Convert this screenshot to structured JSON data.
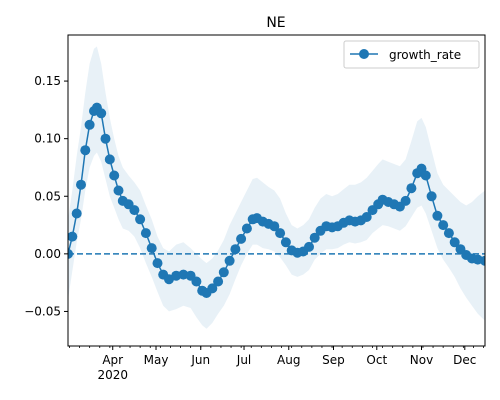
{
  "chart_data": {
    "type": "line",
    "title": "NE",
    "xlabel": "",
    "ylabel": "",
    "x_start": "2020-03-01",
    "x_end": "2020-12-15",
    "ylim": [
      -0.08,
      0.19
    ],
    "yticks": [
      -0.05,
      0.0,
      0.05,
      0.1,
      0.15
    ],
    "ytick_labels": [
      "−0.05",
      "0.00",
      "0.05",
      "0.10",
      "0.15"
    ],
    "xticks": [
      {
        "date": "2020-04-01",
        "label": "Apr",
        "sublabel": "2020"
      },
      {
        "date": "2020-05-01",
        "label": "May"
      },
      {
        "date": "2020-06-01",
        "label": "Jun"
      },
      {
        "date": "2020-07-01",
        "label": "Jul"
      },
      {
        "date": "2020-08-01",
        "label": "Aug"
      },
      {
        "date": "2020-09-01",
        "label": "Sep"
      },
      {
        "date": "2020-10-01",
        "label": "Oct"
      },
      {
        "date": "2020-11-01",
        "label": "Nov"
      },
      {
        "date": "2020-12-01",
        "label": "Dec"
      }
    ],
    "reference_line": {
      "y": 0.0,
      "style": "dashed",
      "color": "#1f77b4"
    },
    "legend": {
      "placement": "top-right",
      "entries": [
        "growth_rate"
      ]
    },
    "grid": false,
    "series": [
      {
        "name": "growth_rate",
        "color": "#1f77b4",
        "band_color": "#1f77b4",
        "points": [
          {
            "x": "2020-03-01",
            "y": 0.0,
            "lo": -0.04,
            "hi": 0.03
          },
          {
            "x": "2020-03-04",
            "y": 0.015,
            "lo": -0.015,
            "hi": 0.055
          },
          {
            "x": "2020-03-07",
            "y": 0.035,
            "lo": 0.01,
            "hi": 0.085
          },
          {
            "x": "2020-03-10",
            "y": 0.06,
            "lo": 0.03,
            "hi": 0.11
          },
          {
            "x": "2020-03-13",
            "y": 0.09,
            "lo": 0.055,
            "hi": 0.14
          },
          {
            "x": "2020-03-16",
            "y": 0.112,
            "lo": 0.075,
            "hi": 0.165
          },
          {
            "x": "2020-03-19",
            "y": 0.124,
            "lo": 0.085,
            "hi": 0.178
          },
          {
            "x": "2020-03-21",
            "y": 0.127,
            "lo": 0.088,
            "hi": 0.18
          },
          {
            "x": "2020-03-24",
            "y": 0.122,
            "lo": 0.08,
            "hi": 0.165
          },
          {
            "x": "2020-03-27",
            "y": 0.1,
            "lo": 0.065,
            "hi": 0.14
          },
          {
            "x": "2020-03-30",
            "y": 0.082,
            "lo": 0.05,
            "hi": 0.118
          },
          {
            "x": "2020-04-02",
            "y": 0.068,
            "lo": 0.04,
            "hi": 0.1
          },
          {
            "x": "2020-04-05",
            "y": 0.055,
            "lo": 0.03,
            "hi": 0.085
          },
          {
            "x": "2020-04-08",
            "y": 0.046,
            "lo": 0.022,
            "hi": 0.075
          },
          {
            "x": "2020-04-12",
            "y": 0.043,
            "lo": 0.02,
            "hi": 0.068
          },
          {
            "x": "2020-04-16",
            "y": 0.038,
            "lo": 0.015,
            "hi": 0.062
          },
          {
            "x": "2020-04-20",
            "y": 0.03,
            "lo": 0.005,
            "hi": 0.055
          },
          {
            "x": "2020-04-24",
            "y": 0.018,
            "lo": -0.008,
            "hi": 0.042
          },
          {
            "x": "2020-04-28",
            "y": 0.005,
            "lo": -0.02,
            "hi": 0.03
          },
          {
            "x": "2020-05-02",
            "y": -0.008,
            "lo": -0.033,
            "hi": 0.015
          },
          {
            "x": "2020-05-06",
            "y": -0.018,
            "lo": -0.045,
            "hi": 0.005
          },
          {
            "x": "2020-05-10",
            "y": -0.022,
            "lo": -0.05,
            "hi": 0.002
          },
          {
            "x": "2020-05-15",
            "y": -0.019,
            "lo": -0.048,
            "hi": 0.008
          },
          {
            "x": "2020-05-20",
            "y": -0.018,
            "lo": -0.045,
            "hi": 0.01
          },
          {
            "x": "2020-05-25",
            "y": -0.019,
            "lo": -0.047,
            "hi": 0.005
          },
          {
            "x": "2020-05-29",
            "y": -0.024,
            "lo": -0.055,
            "hi": 0.0
          },
          {
            "x": "2020-06-02",
            "y": -0.032,
            "lo": -0.062,
            "hi": -0.005
          },
          {
            "x": "2020-06-05",
            "y": -0.034,
            "lo": -0.065,
            "hi": -0.008
          },
          {
            "x": "2020-06-09",
            "y": -0.03,
            "lo": -0.06,
            "hi": -0.004
          },
          {
            "x": "2020-06-13",
            "y": -0.024,
            "lo": -0.052,
            "hi": 0.003
          },
          {
            "x": "2020-06-17",
            "y": -0.016,
            "lo": -0.045,
            "hi": 0.012
          },
          {
            "x": "2020-06-21",
            "y": -0.006,
            "lo": -0.035,
            "hi": 0.025
          },
          {
            "x": "2020-06-25",
            "y": 0.004,
            "lo": -0.022,
            "hi": 0.035
          },
          {
            "x": "2020-06-29",
            "y": 0.013,
            "lo": -0.01,
            "hi": 0.045
          },
          {
            "x": "2020-07-03",
            "y": 0.022,
            "lo": 0.0,
            "hi": 0.055
          },
          {
            "x": "2020-07-07",
            "y": 0.03,
            "lo": 0.008,
            "hi": 0.065
          },
          {
            "x": "2020-07-10",
            "y": 0.031,
            "lo": 0.008,
            "hi": 0.066
          },
          {
            "x": "2020-07-14",
            "y": 0.028,
            "lo": 0.005,
            "hi": 0.062
          },
          {
            "x": "2020-07-18",
            "y": 0.026,
            "lo": 0.004,
            "hi": 0.058
          },
          {
            "x": "2020-07-22",
            "y": 0.024,
            "lo": 0.002,
            "hi": 0.055
          },
          {
            "x": "2020-07-26",
            "y": 0.018,
            "lo": -0.003,
            "hi": 0.048
          },
          {
            "x": "2020-07-30",
            "y": 0.01,
            "lo": -0.01,
            "hi": 0.035
          },
          {
            "x": "2020-08-03",
            "y": 0.003,
            "lo": -0.018,
            "hi": 0.025
          },
          {
            "x": "2020-08-07",
            "y": 0.001,
            "lo": -0.02,
            "hi": 0.022
          },
          {
            "x": "2020-08-11",
            "y": 0.002,
            "lo": -0.018,
            "hi": 0.025
          },
          {
            "x": "2020-08-15",
            "y": 0.006,
            "lo": -0.014,
            "hi": 0.03
          },
          {
            "x": "2020-08-19",
            "y": 0.014,
            "lo": -0.005,
            "hi": 0.04
          },
          {
            "x": "2020-08-23",
            "y": 0.02,
            "lo": 0.0,
            "hi": 0.048
          },
          {
            "x": "2020-08-27",
            "y": 0.024,
            "lo": 0.004,
            "hi": 0.052
          },
          {
            "x": "2020-08-31",
            "y": 0.023,
            "lo": 0.004,
            "hi": 0.05
          },
          {
            "x": "2020-09-04",
            "y": 0.024,
            "lo": 0.005,
            "hi": 0.052
          },
          {
            "x": "2020-09-08",
            "y": 0.027,
            "lo": 0.008,
            "hi": 0.056
          },
          {
            "x": "2020-09-12",
            "y": 0.029,
            "lo": 0.01,
            "hi": 0.06
          },
          {
            "x": "2020-09-16",
            "y": 0.028,
            "lo": 0.009,
            "hi": 0.06
          },
          {
            "x": "2020-09-20",
            "y": 0.029,
            "lo": 0.01,
            "hi": 0.062
          },
          {
            "x": "2020-09-24",
            "y": 0.032,
            "lo": 0.012,
            "hi": 0.066
          },
          {
            "x": "2020-09-28",
            "y": 0.038,
            "lo": 0.018,
            "hi": 0.072
          },
          {
            "x": "2020-10-02",
            "y": 0.043,
            "lo": 0.022,
            "hi": 0.078
          },
          {
            "x": "2020-10-05",
            "y": 0.047,
            "lo": 0.025,
            "hi": 0.082
          },
          {
            "x": "2020-10-09",
            "y": 0.045,
            "lo": 0.024,
            "hi": 0.08
          },
          {
            "x": "2020-10-13",
            "y": 0.043,
            "lo": 0.022,
            "hi": 0.078
          },
          {
            "x": "2020-10-17",
            "y": 0.041,
            "lo": 0.02,
            "hi": 0.076
          },
          {
            "x": "2020-10-21",
            "y": 0.046,
            "lo": 0.024,
            "hi": 0.082
          },
          {
            "x": "2020-10-25",
            "y": 0.057,
            "lo": 0.032,
            "hi": 0.098
          },
          {
            "x": "2020-10-29",
            "y": 0.07,
            "lo": 0.04,
            "hi": 0.115
          },
          {
            "x": "2020-11-01",
            "y": 0.074,
            "lo": 0.042,
            "hi": 0.118
          },
          {
            "x": "2020-11-04",
            "y": 0.068,
            "lo": 0.035,
            "hi": 0.11
          },
          {
            "x": "2020-11-08",
            "y": 0.05,
            "lo": 0.02,
            "hi": 0.09
          },
          {
            "x": "2020-11-12",
            "y": 0.033,
            "lo": 0.005,
            "hi": 0.07
          },
          {
            "x": "2020-11-16",
            "y": 0.025,
            "lo": -0.005,
            "hi": 0.06
          },
          {
            "x": "2020-11-20",
            "y": 0.018,
            "lo": -0.012,
            "hi": 0.055
          },
          {
            "x": "2020-11-24",
            "y": 0.01,
            "lo": -0.02,
            "hi": 0.05
          },
          {
            "x": "2020-11-28",
            "y": 0.004,
            "lo": -0.03,
            "hi": 0.045
          },
          {
            "x": "2020-12-02",
            "y": -0.001,
            "lo": -0.038,
            "hi": 0.042
          },
          {
            "x": "2020-12-06",
            "y": -0.004,
            "lo": -0.045,
            "hi": 0.045
          },
          {
            "x": "2020-12-10",
            "y": -0.005,
            "lo": -0.052,
            "hi": 0.05
          },
          {
            "x": "2020-12-15",
            "y": -0.006,
            "lo": -0.058,
            "hi": 0.055
          }
        ]
      }
    ]
  }
}
